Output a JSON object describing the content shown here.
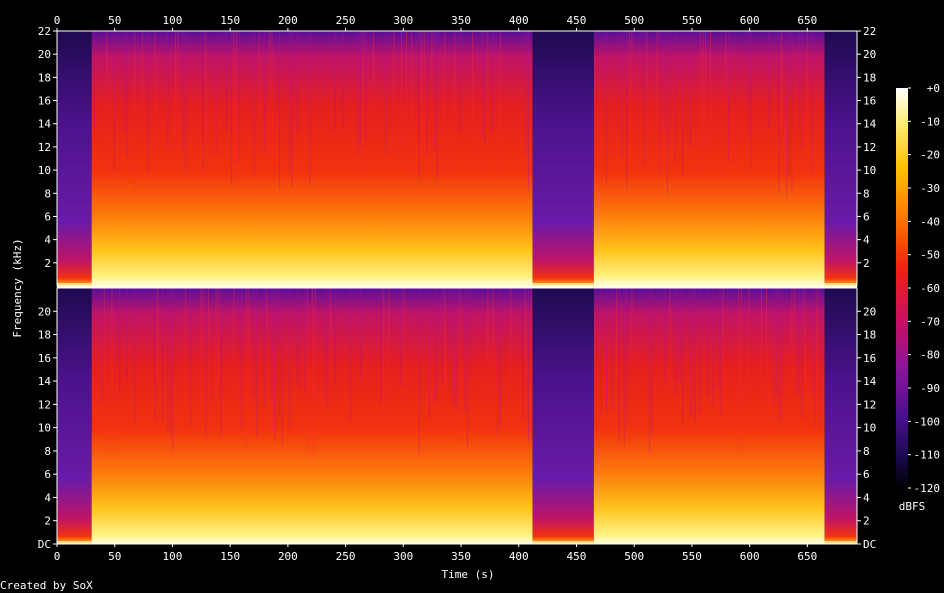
{
  "chart_data": {
    "type": "heatmap",
    "title": "",
    "xlabel": "Time (s)",
    "ylabel": "Frequency (kHz)",
    "colorbar_label": "dBFS",
    "credit": "Created by SoX",
    "xlim": [
      0,
      693
    ],
    "ylim": [
      0,
      22
    ],
    "x_ticks": [
      "0",
      "50",
      "100",
      "150",
      "200",
      "250",
      "300",
      "350",
      "400",
      "450",
      "500",
      "550",
      "600",
      "650"
    ],
    "y_ticks_top": [
      "2",
      "4",
      "6",
      "8",
      "10",
      "12",
      "14",
      "16",
      "18",
      "20",
      "22"
    ],
    "y_ticks_bottom": [
      "DC",
      "2",
      "4",
      "6",
      "8",
      "10",
      "12",
      "14",
      "16",
      "18",
      "20"
    ],
    "colorbar_ticks": [
      "+0",
      "-10",
      "-20",
      "-30",
      "-40",
      "-50",
      "-60",
      "-70",
      "-80",
      "-90",
      "-100",
      "-110",
      "-120"
    ],
    "colorbar_range": [
      -120,
      0
    ],
    "channels": [
      {
        "name": "",
        "segments": [
          {
            "start": 0,
            "end": 30,
            "level": "quiet"
          },
          {
            "start": 30,
            "end": 412,
            "level": "loud"
          },
          {
            "start": 412,
            "end": 465,
            "level": "quiet"
          },
          {
            "start": 465,
            "end": 665,
            "level": "loud"
          },
          {
            "start": 665,
            "end": 693,
            "level": "quiet"
          }
        ]
      },
      {
        "name": "",
        "segments": [
          {
            "start": 0,
            "end": 30,
            "level": "quiet"
          },
          {
            "start": 30,
            "end": 412,
            "level": "loud"
          },
          {
            "start": 412,
            "end": 465,
            "level": "quiet"
          },
          {
            "start": 465,
            "end": 665,
            "level": "loud"
          },
          {
            "start": 665,
            "end": 693,
            "level": "quiet"
          }
        ]
      }
    ]
  }
}
